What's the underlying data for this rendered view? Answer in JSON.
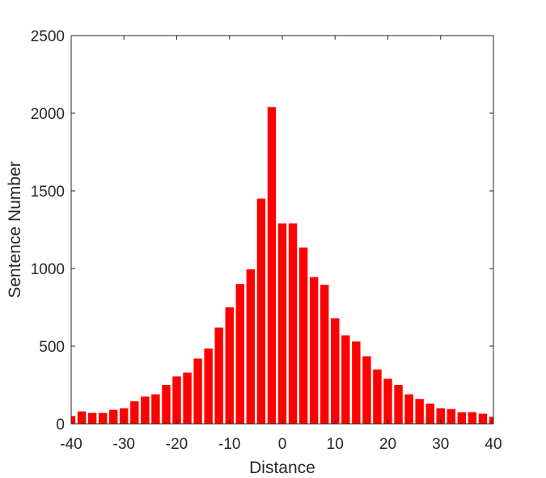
{
  "chart_data": {
    "type": "bar",
    "title": "",
    "xlabel": "Distance",
    "ylabel": "Sentence Number",
    "xlim": [
      -40,
      40
    ],
    "ylim": [
      0,
      2500
    ],
    "x_ticks": [
      -40,
      -30,
      -20,
      -10,
      0,
      10,
      20,
      30,
      40
    ],
    "y_ticks": [
      0,
      500,
      1000,
      1500,
      2000,
      2500
    ],
    "bar_color": "#ff0000",
    "axis_color": "#262626",
    "grid": false,
    "legend": "none",
    "x": [
      -40,
      -38,
      -36,
      -34,
      -32,
      -30,
      -28,
      -26,
      -24,
      -22,
      -20,
      -18,
      -16,
      -14,
      -12,
      -10,
      -8,
      -6,
      -4,
      -2,
      0,
      2,
      4,
      6,
      8,
      10,
      12,
      14,
      16,
      18,
      20,
      22,
      24,
      26,
      28,
      30,
      32,
      34,
      36,
      38,
      40
    ],
    "values": [
      50,
      80,
      70,
      70,
      90,
      100,
      145,
      175,
      190,
      250,
      305,
      330,
      420,
      485,
      620,
      750,
      900,
      995,
      1450,
      2040,
      1290,
      1290,
      1135,
      945,
      895,
      680,
      570,
      530,
      435,
      350,
      290,
      250,
      190,
      160,
      130,
      100,
      95,
      75,
      75,
      65,
      45
    ]
  }
}
